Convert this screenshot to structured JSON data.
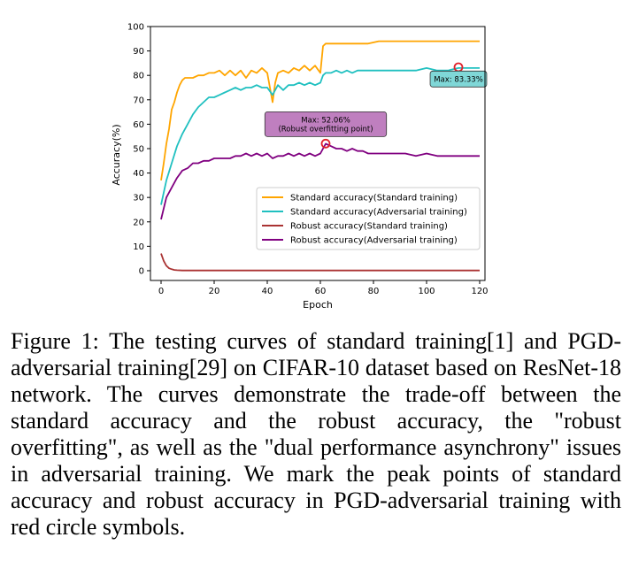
{
  "chart_data": {
    "type": "line",
    "xlabel": "Epoch",
    "ylabel": "Accuracy(%)",
    "xlim": [
      -4,
      122
    ],
    "ylim": [
      -4,
      100
    ],
    "xticks": [
      0,
      20,
      40,
      60,
      80,
      100,
      120
    ],
    "yticks": [
      0,
      10,
      20,
      30,
      40,
      50,
      60,
      70,
      80,
      90,
      100
    ],
    "grid": false,
    "legend_position": "center-right",
    "series": [
      {
        "name": "Standard accuracy(Standard training)",
        "color": "#ffa500",
        "x": [
          0,
          1,
          2,
          3,
          4,
          5,
          6,
          7,
          8,
          9,
          10,
          12,
          14,
          16,
          18,
          20,
          22,
          24,
          26,
          28,
          30,
          32,
          34,
          36,
          38,
          40,
          41,
          42,
          43,
          44,
          46,
          48,
          50,
          52,
          54,
          56,
          58,
          60,
          61,
          62,
          64,
          66,
          68,
          70,
          74,
          78,
          82,
          86,
          90,
          94,
          98,
          102,
          106,
          110,
          114,
          118,
          120
        ],
        "y": [
          37,
          44,
          52,
          58,
          66,
          69,
          73,
          76,
          78,
          79,
          79,
          79,
          80,
          80,
          81,
          81,
          82,
          80,
          82,
          80,
          82,
          79,
          82,
          81,
          83,
          81,
          75,
          69,
          77,
          81,
          82,
          81,
          83,
          82,
          84,
          82,
          84,
          81,
          92,
          93,
          93,
          93,
          93,
          93,
          93,
          93,
          94,
          94,
          94,
          94,
          94,
          94,
          94,
          94,
          94,
          94,
          94
        ]
      },
      {
        "name": "Standard accuracy(Adversarial training)",
        "color": "#20c0c0",
        "x": [
          0,
          2,
          4,
          6,
          8,
          10,
          12,
          14,
          16,
          18,
          20,
          22,
          24,
          26,
          28,
          30,
          32,
          34,
          36,
          38,
          40,
          42,
          44,
          46,
          48,
          50,
          52,
          54,
          56,
          58,
          60,
          61,
          62,
          64,
          66,
          68,
          70,
          72,
          74,
          76,
          78,
          80,
          84,
          88,
          92,
          96,
          100,
          104,
          108,
          112,
          116,
          120
        ],
        "y": [
          27,
          37,
          44,
          51,
          56,
          60,
          64,
          67,
          69,
          71,
          71,
          72,
          73,
          74,
          75,
          74,
          75,
          75,
          76,
          75,
          75,
          72,
          76,
          74,
          76,
          76,
          77,
          76,
          77,
          76,
          77,
          80,
          81,
          81,
          82,
          81,
          82,
          81,
          82,
          82,
          82,
          82,
          82,
          82,
          82,
          82,
          83,
          82,
          82,
          83,
          83,
          83
        ]
      },
      {
        "name": "Robust accuracy(Standard training)",
        "color": "#aa3333",
        "x": [
          0,
          1,
          2,
          3,
          4,
          5,
          6,
          8,
          10,
          15,
          20,
          30,
          40,
          50,
          60,
          70,
          80,
          90,
          100,
          110,
          120
        ],
        "y": [
          7,
          4,
          2,
          1,
          0.6,
          0.3,
          0.2,
          0.1,
          0.1,
          0.1,
          0.1,
          0.1,
          0.1,
          0.1,
          0.1,
          0.1,
          0.1,
          0.1,
          0.1,
          0.1,
          0.1
        ]
      },
      {
        "name": "Robust accuracy(Adversarial training)",
        "color": "#800080",
        "x": [
          0,
          2,
          4,
          6,
          8,
          10,
          12,
          14,
          16,
          18,
          20,
          22,
          24,
          26,
          28,
          30,
          32,
          34,
          36,
          38,
          40,
          42,
          44,
          46,
          48,
          50,
          52,
          54,
          56,
          58,
          60,
          62,
          64,
          66,
          68,
          70,
          72,
          74,
          76,
          78,
          80,
          84,
          88,
          92,
          96,
          100,
          104,
          108,
          112,
          116,
          120
        ],
        "y": [
          21,
          30,
          34,
          38,
          41,
          42,
          44,
          44,
          45,
          45,
          46,
          46,
          46,
          46,
          47,
          47,
          48,
          47,
          48,
          47,
          48,
          46,
          47,
          47,
          48,
          47,
          48,
          47,
          48,
          47,
          48,
          52,
          51,
          50,
          50,
          49,
          50,
          49,
          49,
          48,
          48,
          48,
          48,
          48,
          47,
          48,
          47,
          47,
          47,
          47,
          47
        ]
      }
    ],
    "markers": [
      {
        "series": "Standard accuracy(Adversarial training)",
        "x": 112,
        "y": 83.33,
        "color": "#e0202a"
      },
      {
        "series": "Robust accuracy(Adversarial training)",
        "x": 62,
        "y": 52.06,
        "color": "#e0202a"
      }
    ],
    "annotations": [
      {
        "text": "Max: 83.33%",
        "lines": [
          "Max: 83.33%"
        ],
        "x": 112,
        "y": 78.5,
        "bg": "#7fd7d7"
      },
      {
        "text": "Max: 52.06% (Robust overfitting point)",
        "lines": [
          "Max: 52.06%",
          "(Robust overfitting point)"
        ],
        "x": 62,
        "y": 60,
        "bg": "#bf7fbf"
      }
    ]
  },
  "caption": "Figure 1: The testing curves of standard training[1] and PGD-adversarial training[29] on CIFAR-10 dataset based on ResNet-18 network. The curves demonstrate the trade-off between the standard accuracy and the robust accuracy, the \"robust overfitting\", as well as the \"dual performance asynchrony\" issues in adversarial training. We mark the peak points of standard accuracy and robust accuracy in PGD-adversarial training with red circle symbols."
}
